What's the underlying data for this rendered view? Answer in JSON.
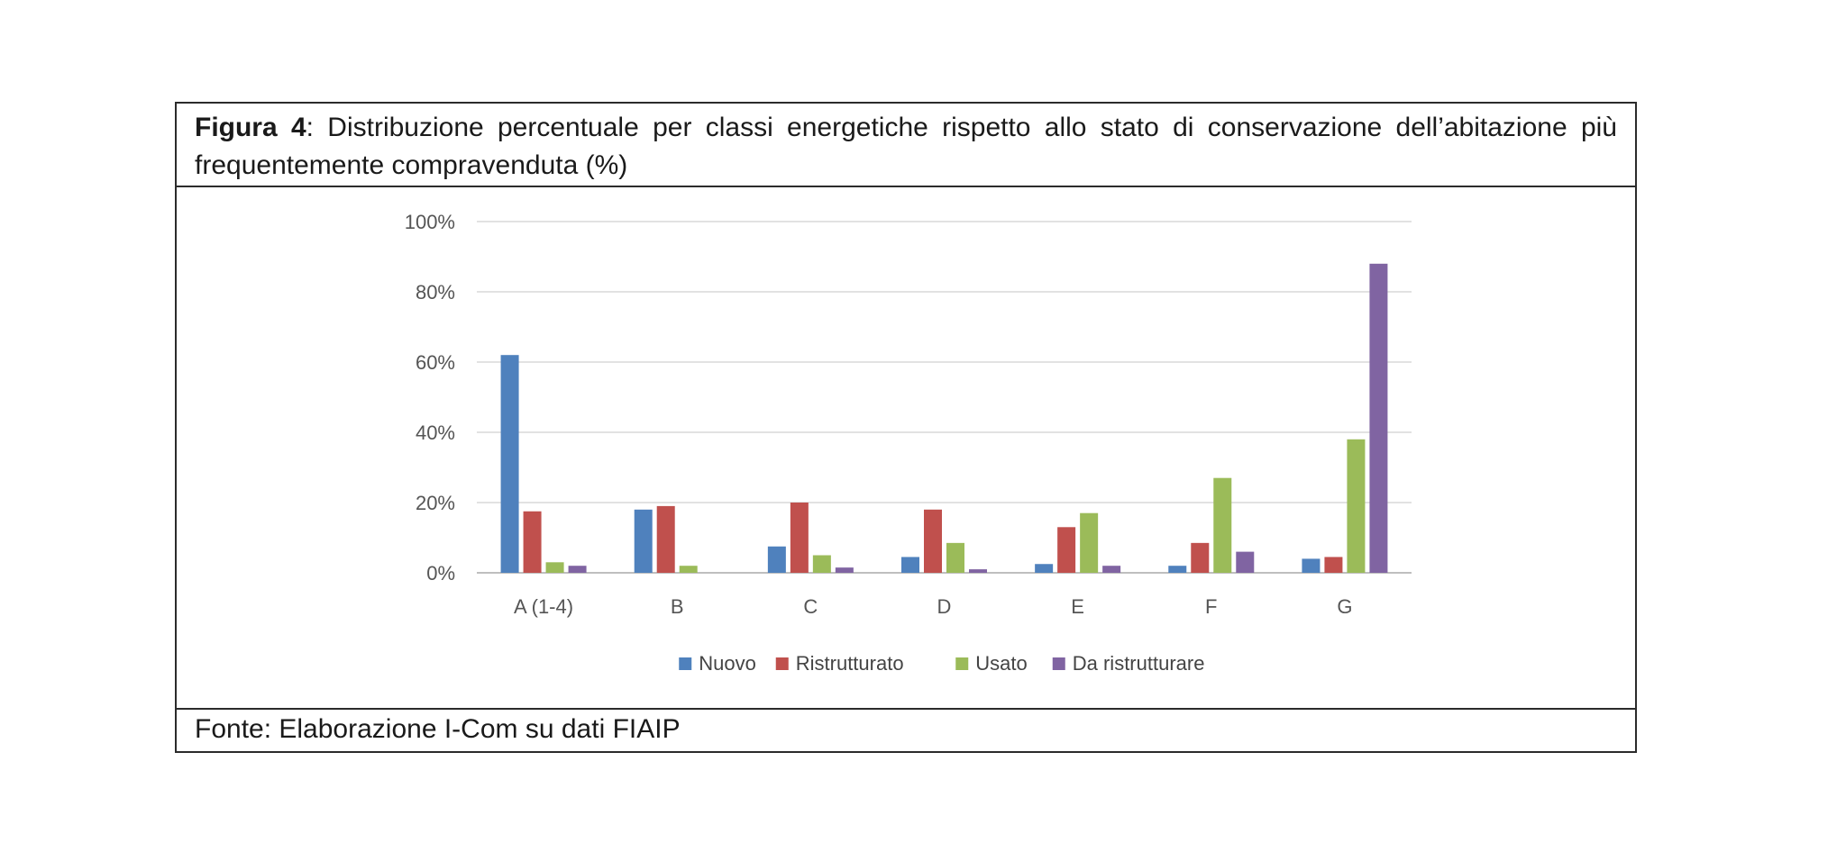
{
  "caption": {
    "label": "Figura 4",
    "text": ": Distribuzione percentuale per classi energetiche rispetto allo stato di conservazione dell’abitazione più frequentemente compravenduta (%)"
  },
  "source": "Fonte: Elaborazione I-Com su dati FIAIP",
  "chart_data": {
    "type": "bar",
    "categories": [
      "A (1-4)",
      "B",
      "C",
      "D",
      "E",
      "F",
      "G"
    ],
    "series": [
      {
        "name": "Nuovo",
        "color": "#4f81bd",
        "values": [
          62,
          18,
          7.5,
          4.5,
          2.5,
          2,
          4
        ]
      },
      {
        "name": "Ristrutturato",
        "color": "#c0504d",
        "values": [
          17.5,
          19,
          20,
          18,
          13,
          8.5,
          4.5
        ]
      },
      {
        "name": "Usato",
        "color": "#9bbb59",
        "values": [
          3,
          2,
          5,
          8.5,
          17,
          27,
          38
        ]
      },
      {
        "name": "Da ristrutturare",
        "color": "#8064a2",
        "values": [
          2,
          0,
          1.5,
          1,
          2,
          6,
          88
        ]
      }
    ],
    "yticks": [
      "0%",
      "20%",
      "40%",
      "60%",
      "80%",
      "100%"
    ],
    "ylim": [
      0,
      100
    ],
    "grid": true,
    "legend": "bottom",
    "xlabel": "",
    "ylabel": ""
  }
}
